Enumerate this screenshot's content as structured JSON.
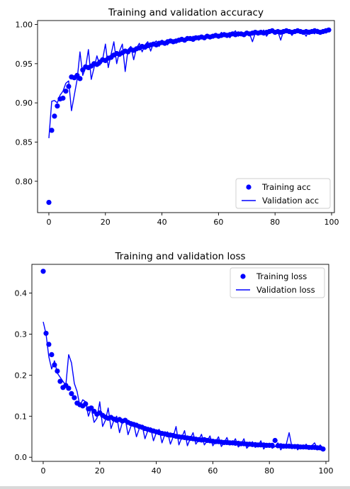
{
  "chart_data": [
    {
      "type": "line",
      "title": "Training and validation accuracy",
      "xlabel": "",
      "ylabel": "",
      "xlim": [
        -4,
        101
      ],
      "ylim": [
        0.76,
        1.005
      ],
      "xticks": [
        0,
        20,
        40,
        60,
        80,
        100
      ],
      "yticks": [
        0.8,
        0.85,
        0.9,
        0.95,
        1.0
      ],
      "ytick_labels": [
        "0.80",
        "0.85",
        "0.90",
        "0.95",
        "1.00"
      ],
      "grid": false,
      "legend_position": "lower-right",
      "series": [
        {
          "name": "Training acc",
          "style": "markers",
          "color": "#0000ff",
          "x": [
            0,
            1,
            2,
            3,
            4,
            5,
            6,
            7,
            8,
            9,
            10,
            11,
            12,
            13,
            14,
            15,
            16,
            17,
            18,
            19,
            20,
            21,
            22,
            23,
            24,
            25,
            26,
            27,
            28,
            29,
            30,
            31,
            32,
            33,
            34,
            35,
            36,
            37,
            38,
            39,
            40,
            41,
            42,
            43,
            44,
            45,
            46,
            47,
            48,
            49,
            50,
            51,
            52,
            53,
            54,
            55,
            56,
            57,
            58,
            59,
            60,
            61,
            62,
            63,
            64,
            65,
            66,
            67,
            68,
            69,
            70,
            71,
            72,
            73,
            74,
            75,
            76,
            77,
            78,
            79,
            80,
            81,
            82,
            83,
            84,
            85,
            86,
            87,
            88,
            89,
            90,
            91,
            92,
            93,
            94,
            95,
            96,
            97,
            98,
            99
          ],
          "y": [
            0.773,
            0.865,
            0.883,
            0.896,
            0.905,
            0.906,
            0.915,
            0.921,
            0.933,
            0.932,
            0.935,
            0.931,
            0.942,
            0.946,
            0.945,
            0.947,
            0.95,
            0.949,
            0.952,
            0.955,
            0.954,
            0.957,
            0.958,
            0.961,
            0.963,
            0.962,
            0.964,
            0.966,
            0.965,
            0.968,
            0.967,
            0.969,
            0.97,
            0.972,
            0.971,
            0.973,
            0.974,
            0.975,
            0.974,
            0.976,
            0.977,
            0.976,
            0.978,
            0.979,
            0.978,
            0.979,
            0.98,
            0.981,
            0.98,
            0.982,
            0.982,
            0.981,
            0.983,
            0.983,
            0.984,
            0.983,
            0.985,
            0.984,
            0.985,
            0.986,
            0.985,
            0.986,
            0.987,
            0.986,
            0.987,
            0.988,
            0.987,
            0.988,
            0.988,
            0.987,
            0.989,
            0.988,
            0.989,
            0.99,
            0.989,
            0.99,
            0.989,
            0.99,
            0.991,
            0.992,
            0.99,
            0.991,
            0.99,
            0.991,
            0.992,
            0.991,
            0.99,
            0.991,
            0.992,
            0.991,
            0.99,
            0.991,
            0.99,
            0.991,
            0.992,
            0.991,
            0.99,
            0.991,
            0.992,
            0.993
          ]
        },
        {
          "name": "Validation acc",
          "style": "line",
          "color": "#0000ff",
          "x": [
            0,
            1,
            2,
            3,
            4,
            5,
            6,
            7,
            8,
            9,
            10,
            11,
            12,
            13,
            14,
            15,
            16,
            17,
            18,
            19,
            20,
            21,
            22,
            23,
            24,
            25,
            26,
            27,
            28,
            29,
            30,
            31,
            32,
            33,
            34,
            35,
            36,
            37,
            38,
            39,
            40,
            41,
            42,
            43,
            44,
            45,
            46,
            47,
            48,
            49,
            50,
            51,
            52,
            53,
            54,
            55,
            56,
            57,
            58,
            59,
            60,
            61,
            62,
            63,
            64,
            65,
            66,
            67,
            68,
            69,
            70,
            71,
            72,
            73,
            74,
            75,
            76,
            77,
            78,
            79,
            80,
            81,
            82,
            83,
            84,
            85,
            86,
            87,
            88,
            89,
            90,
            91,
            92,
            93,
            94,
            95,
            96,
            97,
            98,
            99
          ],
          "y": [
            0.855,
            0.902,
            0.903,
            0.9,
            0.91,
            0.915,
            0.925,
            0.928,
            0.89,
            0.91,
            0.93,
            0.965,
            0.935,
            0.945,
            0.968,
            0.93,
            0.945,
            0.96,
            0.948,
            0.955,
            0.975,
            0.945,
            0.962,
            0.978,
            0.95,
            0.966,
            0.975,
            0.94,
            0.968,
            0.972,
            0.955,
            0.97,
            0.976,
            0.965,
            0.974,
            0.978,
            0.966,
            0.976,
            0.979,
            0.972,
            0.98,
            0.977,
            0.974,
            0.981,
            0.979,
            0.976,
            0.982,
            0.983,
            0.978,
            0.984,
            0.981,
            0.985,
            0.982,
            0.98,
            0.985,
            0.984,
            0.987,
            0.983,
            0.986,
            0.988,
            0.984,
            0.99,
            0.986,
            0.989,
            0.983,
            0.988,
            0.992,
            0.985,
            0.99,
            0.986,
            0.991,
            0.988,
            0.978,
            0.989,
            0.991,
            0.987,
            0.993,
            0.985,
            0.99,
            0.994,
            0.988,
            0.991,
            0.98,
            0.992,
            0.99,
            0.993,
            0.986,
            0.992,
            0.994,
            0.989,
            0.991,
            0.985,
            0.993,
            0.99,
            0.988,
            0.994,
            0.99,
            0.992,
            0.989,
            0.994
          ]
        }
      ]
    },
    {
      "type": "line",
      "title": "Training and validation loss",
      "xlabel": "",
      "ylabel": "",
      "xlim": [
        -4,
        101
      ],
      "ylim": [
        -0.01,
        0.47
      ],
      "xticks": [
        0,
        20,
        40,
        60,
        80,
        100
      ],
      "yticks": [
        0.0,
        0.1,
        0.2,
        0.3,
        0.4
      ],
      "ytick_labels": [
        "0.0",
        "0.1",
        "0.2",
        "0.3",
        "0.4"
      ],
      "grid": false,
      "legend_position": "upper-right",
      "series": [
        {
          "name": "Training loss",
          "style": "markers",
          "color": "#0000ff",
          "x": [
            0,
            1,
            2,
            3,
            4,
            5,
            6,
            7,
            8,
            9,
            10,
            11,
            12,
            13,
            14,
            15,
            16,
            17,
            18,
            19,
            20,
            21,
            22,
            23,
            24,
            25,
            26,
            27,
            28,
            29,
            30,
            31,
            32,
            33,
            34,
            35,
            36,
            37,
            38,
            39,
            40,
            41,
            42,
            43,
            44,
            45,
            46,
            47,
            48,
            49,
            50,
            51,
            52,
            53,
            54,
            55,
            56,
            57,
            58,
            59,
            60,
            61,
            62,
            63,
            64,
            65,
            66,
            67,
            68,
            69,
            70,
            71,
            72,
            73,
            74,
            75,
            76,
            77,
            78,
            79,
            80,
            81,
            82,
            83,
            84,
            85,
            86,
            87,
            88,
            89,
            90,
            91,
            92,
            93,
            94,
            95,
            96,
            97,
            98,
            99
          ],
          "y": [
            0.453,
            0.302,
            0.275,
            0.25,
            0.225,
            0.21,
            0.185,
            0.17,
            0.175,
            0.168,
            0.155,
            0.145,
            0.132,
            0.128,
            0.125,
            0.13,
            0.118,
            0.12,
            0.112,
            0.105,
            0.108,
            0.102,
            0.098,
            0.095,
            0.097,
            0.093,
            0.09,
            0.092,
            0.088,
            0.09,
            0.085,
            0.082,
            0.08,
            0.078,
            0.075,
            0.073,
            0.07,
            0.068,
            0.066,
            0.064,
            0.062,
            0.06,
            0.058,
            0.057,
            0.055,
            0.054,
            0.053,
            0.051,
            0.05,
            0.049,
            0.048,
            0.047,
            0.046,
            0.045,
            0.044,
            0.043,
            0.042,
            0.043,
            0.041,
            0.04,
            0.039,
            0.038,
            0.038,
            0.037,
            0.036,
            0.036,
            0.035,
            0.035,
            0.034,
            0.034,
            0.033,
            0.033,
            0.032,
            0.032,
            0.031,
            0.031,
            0.03,
            0.03,
            0.03,
            0.029,
            0.029,
            0.029,
            0.041,
            0.028,
            0.028,
            0.027,
            0.027,
            0.027,
            0.026,
            0.026,
            0.026,
            0.025,
            0.025,
            0.025,
            0.024,
            0.024,
            0.024,
            0.023,
            0.023,
            0.02
          ]
        },
        {
          "name": "Validation loss",
          "style": "line",
          "color": "#0000ff",
          "x": [
            0,
            1,
            2,
            3,
            4,
            5,
            6,
            7,
            8,
            9,
            10,
            11,
            12,
            13,
            14,
            15,
            16,
            17,
            18,
            19,
            20,
            21,
            22,
            23,
            24,
            25,
            26,
            27,
            28,
            29,
            30,
            31,
            32,
            33,
            34,
            35,
            36,
            37,
            38,
            39,
            40,
            41,
            42,
            43,
            44,
            45,
            46,
            47,
            48,
            49,
            50,
            51,
            52,
            53,
            54,
            55,
            56,
            57,
            58,
            59,
            60,
            61,
            62,
            63,
            64,
            65,
            66,
            67,
            68,
            69,
            70,
            71,
            72,
            73,
            74,
            75,
            76,
            77,
            78,
            79,
            80,
            81,
            82,
            83,
            84,
            85,
            86,
            87,
            88,
            89,
            90,
            91,
            92,
            93,
            94,
            95,
            96,
            97,
            98,
            99
          ],
          "y": [
            0.33,
            0.3,
            0.245,
            0.215,
            0.235,
            0.205,
            0.195,
            0.185,
            0.175,
            0.25,
            0.23,
            0.18,
            0.16,
            0.125,
            0.14,
            0.135,
            0.1,
            0.12,
            0.085,
            0.095,
            0.135,
            0.075,
            0.09,
            0.12,
            0.07,
            0.09,
            0.1,
            0.06,
            0.085,
            0.095,
            0.055,
            0.075,
            0.082,
            0.05,
            0.07,
            0.078,
            0.045,
            0.065,
            0.072,
            0.04,
            0.06,
            0.068,
            0.035,
            0.055,
            0.062,
            0.032,
            0.05,
            0.075,
            0.03,
            0.048,
            0.065,
            0.028,
            0.045,
            0.06,
            0.032,
            0.042,
            0.056,
            0.03,
            0.04,
            0.052,
            0.028,
            0.038,
            0.05,
            0.026,
            0.036,
            0.048,
            0.03,
            0.034,
            0.045,
            0.025,
            0.032,
            0.045,
            0.022,
            0.03,
            0.038,
            0.024,
            0.028,
            0.04,
            0.02,
            0.03,
            0.034,
            0.022,
            0.026,
            0.035,
            0.018,
            0.028,
            0.032,
            0.06,
            0.024,
            0.03,
            0.018,
            0.026,
            0.022,
            0.032,
            0.02,
            0.028,
            0.035,
            0.022,
            0.03,
            0.016
          ]
        }
      ]
    }
  ]
}
